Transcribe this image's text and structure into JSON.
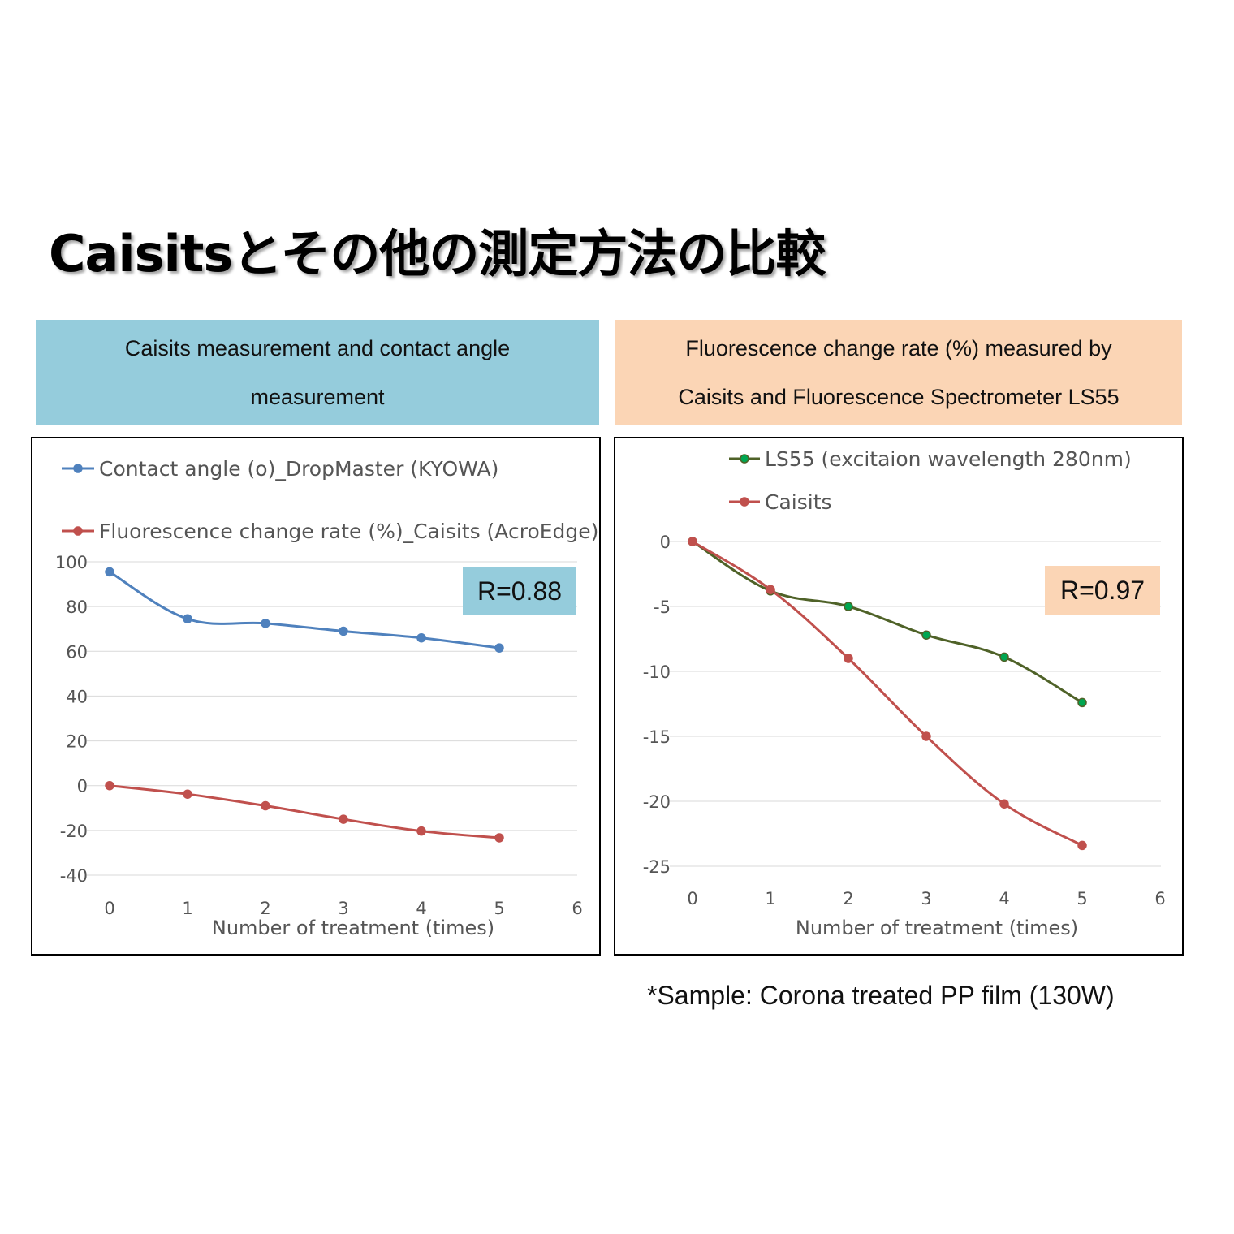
{
  "page": {
    "title": "Caisitsとその他の測定方法の比較",
    "left_header": [
      "Caisits measurement and contact angle",
      "measurement"
    ],
    "right_header": [
      "Fluorescence change rate (%) measured by",
      "Caisits and Fluorescence Spectrometer  LS55"
    ],
    "left_r": "R=0.88",
    "right_r": "R=0.97",
    "note": "*Sample: Corona treated PP film (130W)"
  },
  "chart_data": [
    {
      "type": "line",
      "xlabel": "Number of treatment (times)",
      "ylabel": "",
      "xlim": [
        0,
        6
      ],
      "ylim": [
        -40,
        100
      ],
      "xticks": [
        0,
        1,
        2,
        3,
        4,
        5,
        6
      ],
      "yticks": [
        -40,
        -20,
        0,
        20,
        40,
        60,
        80,
        100
      ],
      "grid": true,
      "legend": "top",
      "series": [
        {
          "name": "Contact angle (o)_DropMaster (KYOWA)",
          "color": "#4f81bd",
          "x": [
            0,
            1,
            2,
            3,
            4,
            5
          ],
          "y": [
            95.5,
            74.5,
            72.5,
            69,
            66,
            61.5
          ]
        },
        {
          "name": "Fluorescence change rate (%)_Caisits (AcroEdge)",
          "color": "#c0504d",
          "x": [
            0,
            1,
            2,
            3,
            4,
            5
          ],
          "y": [
            0,
            -3.8,
            -9,
            -15,
            -20.3,
            -23.3
          ]
        }
      ]
    },
    {
      "type": "line",
      "xlabel": "Number of treatment (times)",
      "ylabel": "",
      "xlim": [
        0,
        6
      ],
      "ylim": [
        -25,
        0
      ],
      "xticks": [
        0,
        1,
        2,
        3,
        4,
        5,
        6
      ],
      "yticks": [
        -25,
        -20,
        -15,
        -10,
        -5,
        0
      ],
      "grid": true,
      "legend": "top",
      "series": [
        {
          "name": "LS55 (excitaion wavelength 280nm)",
          "color": "#4f6228",
          "marker_fill": "#00a651",
          "x": [
            0,
            1,
            2,
            3,
            4,
            5
          ],
          "y": [
            0,
            -3.8,
            -5,
            -7.2,
            -8.9,
            -12.4
          ]
        },
        {
          "name": "Caisits",
          "color": "#c0504d",
          "x": [
            0,
            1,
            2,
            3,
            4,
            5
          ],
          "y": [
            0,
            -3.7,
            -9,
            -15,
            -20.2,
            -23.4
          ]
        }
      ]
    }
  ]
}
